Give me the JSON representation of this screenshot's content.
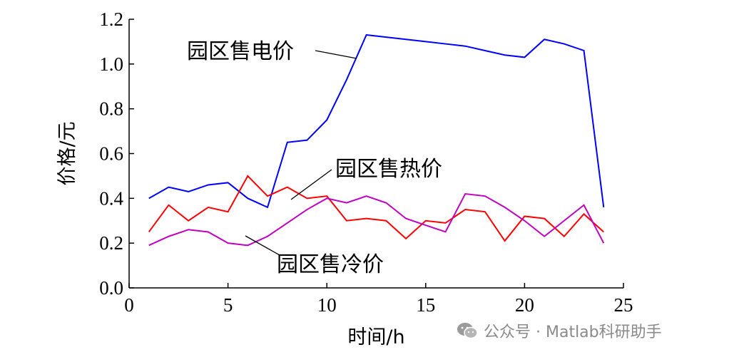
{
  "chart_data": {
    "type": "line",
    "xlabel": "时间/h",
    "ylabel": "价格/元",
    "xlim": [
      0,
      25
    ],
    "ylim": [
      0,
      1.2
    ],
    "xticks": [
      "0",
      "5",
      "10",
      "15",
      "20",
      "25"
    ],
    "yticks": [
      "0.0",
      "0.2",
      "0.4",
      "0.6",
      "0.8",
      "1.0",
      "1.2"
    ],
    "x": [
      1,
      2,
      3,
      4,
      5,
      6,
      7,
      8,
      9,
      10,
      11,
      12,
      13,
      14,
      15,
      16,
      17,
      18,
      19,
      20,
      21,
      22,
      23,
      24
    ],
    "series": [
      {
        "name": "园区售电价",
        "color": "#0000ff",
        "values": [
          0.4,
          0.45,
          0.43,
          0.46,
          0.47,
          0.4,
          0.36,
          0.65,
          0.66,
          0.75,
          0.93,
          1.13,
          1.12,
          1.11,
          1.1,
          1.09,
          1.08,
          1.06,
          1.04,
          1.03,
          1.11,
          1.09,
          1.06,
          0.36
        ]
      },
      {
        "name": "园区售热价",
        "color": "#ff0000",
        "values": [
          0.25,
          0.37,
          0.3,
          0.36,
          0.34,
          0.5,
          0.41,
          0.45,
          0.4,
          0.41,
          0.3,
          0.31,
          0.3,
          0.22,
          0.3,
          0.29,
          0.35,
          0.34,
          0.21,
          0.32,
          0.31,
          0.23,
          0.33,
          0.25
        ]
      },
      {
        "name": "园区售冷价",
        "color": "#c000c0",
        "values": [
          0.19,
          0.23,
          0.26,
          0.25,
          0.2,
          0.19,
          0.23,
          0.29,
          0.35,
          0.4,
          0.38,
          0.41,
          0.38,
          0.31,
          0.28,
          0.25,
          0.42,
          0.41,
          0.36,
          0.3,
          0.23,
          0.3,
          0.37,
          0.2
        ]
      }
    ],
    "annotations": [
      {
        "text": "园区售电价",
        "series": 0
      },
      {
        "text": "园区售热价",
        "series": 1
      },
      {
        "text": "园区售冷价",
        "series": 2
      }
    ]
  },
  "watermark": {
    "icon": "wechat-icon",
    "text": "公众号 · Matlab科研助手"
  }
}
